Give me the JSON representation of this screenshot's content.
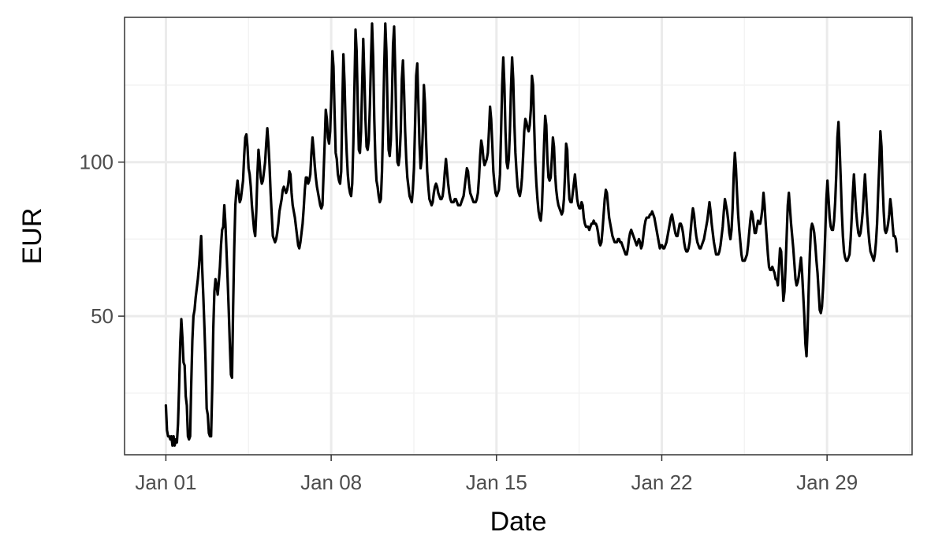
{
  "chart_data": {
    "type": "line",
    "title": "",
    "xlabel": "Date",
    "ylabel": "EUR",
    "x_ticks": [
      "Jan 01",
      "Jan 08",
      "Jan 15",
      "Jan 22",
      "Jan 29"
    ],
    "y_ticks": [
      50,
      100
    ],
    "xlim": [
      "2025-01-01",
      "2025-02-01"
    ],
    "ylim": [
      5,
      147
    ],
    "grid": true,
    "legend": "none",
    "colors": {
      "line": "#000000",
      "grid_major": "#ebebeb",
      "grid_minor": "#f3f3f3",
      "panel_border": "#333333",
      "tick_label": "#4d4d4d"
    },
    "series": [
      {
        "x_start": "2025-01-01 00:00",
        "x_end": "2025-01-31 23:00",
        "y": [
          21,
          13,
          11,
          11,
          10,
          11,
          8,
          11,
          8,
          10,
          9,
          15,
          27,
          41,
          49,
          43,
          35,
          34,
          24,
          21,
          11,
          10,
          11,
          28,
          42,
          50,
          52,
          56,
          59,
          62,
          66,
          71,
          76,
          65,
          56,
          46,
          35,
          20,
          18,
          12,
          11,
          11,
          26,
          46,
          58,
          62,
          60,
          57,
          61,
          66,
          73,
          78,
          79,
          86,
          80,
          71,
          62,
          52,
          41,
          31,
          30,
          53,
          72,
          86,
          91,
          94,
          90,
          87,
          88,
          91,
          94,
          102,
          108,
          109,
          105,
          98,
          96,
          92,
          86,
          82,
          78,
          76,
          84,
          96,
          104,
          100,
          95,
          93,
          94,
          97,
          100,
          106,
          111,
          106,
          99,
          90,
          83,
          76,
          75,
          74,
          75,
          77,
          80,
          84,
          86,
          88,
          91,
          92,
          91,
          90,
          91,
          93,
          97,
          96,
          90,
          86,
          84,
          82,
          79,
          76,
          73,
          72,
          74,
          77,
          80,
          85,
          91,
          95,
          95,
          93,
          94,
          96,
          103,
          108,
          104,
          99,
          95,
          92,
          90,
          88,
          86,
          85,
          86,
          96,
          106,
          117,
          114,
          108,
          106,
          110,
          121,
          136,
          131,
          116,
          103,
          101,
          96,
          94,
          93,
          97,
          118,
          135,
          126,
          112,
          103,
          96,
          92,
          90,
          89,
          93,
          106,
          124,
          143,
          136,
          119,
          104,
          103,
          110,
          125,
          140,
          128,
          114,
          105,
          104,
          107,
          118,
          133,
          145,
          134,
          114,
          101,
          94,
          92,
          89,
          87,
          88,
          97,
          112,
          131,
          145,
          136,
          118,
          104,
          102,
          107,
          120,
          138,
          144,
          130,
          112,
          100,
          99,
          102,
          110,
          127,
          133,
          123,
          110,
          101,
          95,
          92,
          89,
          88,
          87,
          91,
          98,
          112,
          128,
          132,
          119,
          106,
          98,
          101,
          110,
          125,
          119,
          107,
          97,
          92,
          88,
          87,
          86,
          87,
          90,
          92,
          93,
          92,
          90,
          89,
          88,
          88,
          89,
          92,
          97,
          101,
          97,
          93,
          90,
          88,
          87,
          87,
          87,
          88,
          88,
          87,
          86,
          86,
          86,
          87,
          88,
          89,
          92,
          95,
          98,
          97,
          93,
          90,
          89,
          88,
          87,
          87,
          87,
          88,
          90,
          95,
          102,
          107,
          105,
          101,
          99,
          100,
          101,
          103,
          110,
          118,
          114,
          106,
          97,
          93,
          90,
          89,
          90,
          91,
          96,
          110,
          125,
          134,
          125,
          110,
          100,
          98,
          101,
          110,
          124,
          134,
          127,
          113,
          103,
          97,
          92,
          90,
          89,
          91,
          95,
          102,
          110,
          114,
          113,
          111,
          110,
          112,
          117,
          128,
          125,
          112,
          100,
          93,
          88,
          84,
          82,
          81,
          85,
          95,
          106,
          115,
          112,
          101,
          95,
          94,
          95,
          101,
          108,
          105,
          96,
          91,
          88,
          86,
          85,
          84,
          83,
          84,
          88,
          96,
          106,
          104,
          94,
          88,
          87,
          87,
          90,
          93,
          96,
          92,
          88,
          86,
          85,
          85,
          87,
          86,
          82,
          80,
          79,
          79,
          79,
          78,
          79,
          80,
          80,
          81,
          80,
          80,
          79,
          77,
          74,
          73,
          74,
          78,
          83,
          88,
          91,
          90,
          86,
          82,
          80,
          78,
          76,
          75,
          74,
          74,
          74,
          75,
          75,
          74,
          74,
          73,
          72,
          71,
          70,
          70,
          72,
          75,
          77,
          78,
          77,
          76,
          75,
          74,
          73,
          74,
          75,
          74,
          72,
          73,
          76,
          79,
          81,
          82,
          82,
          82,
          83,
          83,
          84,
          83,
          82,
          80,
          78,
          76,
          74,
          72,
          73,
          73,
          72,
          72,
          73,
          74,
          76,
          78,
          80,
          82,
          83,
          81,
          79,
          77,
          76,
          76,
          78,
          80,
          80,
          79,
          77,
          74,
          72,
          71,
          71,
          72,
          74,
          78,
          82,
          85,
          83,
          79,
          76,
          74,
          73,
          72,
          72,
          73,
          74,
          75,
          77,
          79,
          81,
          84,
          87,
          84,
          80,
          77,
          74,
          72,
          70,
          70,
          70,
          71,
          73,
          76,
          79,
          84,
          88,
          86,
          84,
          81,
          77,
          75,
          78,
          85,
          96,
          103,
          98,
          90,
          83,
          78,
          74,
          70,
          68,
          68,
          68,
          69,
          70,
          73,
          77,
          81,
          84,
          83,
          80,
          77,
          77,
          79,
          81,
          80,
          80,
          82,
          85,
          90,
          86,
          80,
          75,
          70,
          66,
          65,
          65,
          66,
          65,
          64,
          62,
          62,
          60,
          66,
          72,
          71,
          63,
          55,
          58,
          66,
          76,
          86,
          90,
          85,
          80,
          76,
          72,
          67,
          62,
          60,
          61,
          63,
          66,
          69,
          64,
          57,
          50,
          41,
          37,
          46,
          59,
          70,
          78,
          80,
          79,
          77,
          73,
          68,
          64,
          58,
          52,
          51,
          53,
          59,
          67,
          77,
          88,
          94,
          88,
          82,
          79,
          78,
          78,
          81,
          87,
          96,
          108,
          113,
          105,
          95,
          84,
          76,
          71,
          69,
          68,
          68,
          69,
          70,
          75,
          82,
          90,
          96,
          90,
          84,
          80,
          77,
          76,
          77,
          80,
          84,
          90,
          96,
          90,
          83,
          78,
          74,
          71,
          70,
          69,
          68,
          70,
          74,
          80,
          90,
          99,
          110,
          105,
          93,
          84,
          78,
          77,
          78,
          80,
          83,
          88,
          85,
          80,
          76,
          76,
          75,
          71
        ]
      }
    ]
  }
}
